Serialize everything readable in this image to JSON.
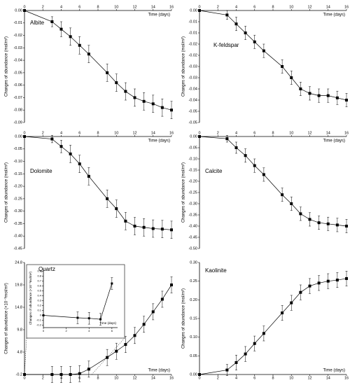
{
  "chart_data": [
    {
      "type": "line",
      "title": "Albite",
      "y_label": "Changes of abundance (mol/m²)",
      "x_label": "Time (days)",
      "x_axis_side": "top",
      "x": [
        0,
        3,
        4,
        5,
        6,
        7,
        9,
        10,
        11,
        12,
        13,
        14,
        15,
        16
      ],
      "values": [
        0,
        -0.009,
        -0.015,
        -0.021,
        -0.028,
        -0.035,
        -0.05,
        -0.058,
        -0.065,
        -0.07,
        -0.073,
        -0.075,
        -0.078,
        -0.08
      ],
      "errors": [
        0,
        0.004,
        0.006,
        0.007,
        0.007,
        0.007,
        0.007,
        0.007,
        0.007,
        0.007,
        0.007,
        0.007,
        0.007,
        0.007
      ],
      "xlim": [
        0,
        16
      ],
      "xticks": [
        0,
        2,
        4,
        6,
        8,
        10,
        12,
        14,
        16
      ],
      "ylim": [
        -0.09,
        0
      ],
      "yticks": [
        {
          "value": 0,
          "label": "0.00"
        },
        -0.01,
        -0.02,
        -0.03,
        -0.04,
        -0.05,
        -0.06,
        -0.07,
        -0.08,
        -0.09
      ]
    },
    {
      "type": "line",
      "title": "K-feldspar",
      "y_label": "Changes of abundance (mol/m²)",
      "x_label": "Time (days)",
      "x_axis_side": "top",
      "x": [
        0,
        3,
        4,
        5,
        6,
        7,
        9,
        10,
        11,
        12,
        13,
        14,
        15,
        16
      ],
      "values": [
        0,
        -0.002,
        -0.006,
        -0.01,
        -0.014,
        -0.018,
        -0.025,
        -0.03,
        -0.035,
        -0.037,
        -0.038,
        -0.038,
        -0.039,
        -0.04
      ],
      "errors": [
        0,
        0.002,
        0.003,
        0.003,
        0.003,
        0.003,
        0.003,
        0.003,
        0.003,
        0.003,
        0.003,
        0.003,
        0.003,
        0.003
      ],
      "xlim": [
        0,
        16
      ],
      "xticks": [
        0,
        2,
        4,
        6,
        8,
        10,
        12,
        14,
        16
      ],
      "ylim": [
        -0.05,
        0
      ],
      "yticks": [
        {
          "value": 0,
          "label": "0.00"
        },
        {
          "value": -0.005,
          "label": "-0.01"
        },
        -0.01,
        {
          "value": -0.015,
          "label": "-0.02"
        },
        -0.02,
        {
          "value": -0.025,
          "label": "-0.03"
        },
        -0.03,
        {
          "value": -0.035,
          "label": "-0.04"
        },
        -0.04,
        {
          "value": -0.045,
          "label": "-0.05"
        },
        -0.05
      ]
    },
    {
      "type": "line",
      "title": "Dolomite",
      "y_label": "Changes of abundance (mol/m²)",
      "x_label": "Time (days)",
      "x_axis_side": "top",
      "x": [
        0,
        3,
        4,
        5,
        6,
        7,
        9,
        10,
        11,
        12,
        13,
        14,
        15,
        16
      ],
      "values": [
        0,
        -0.01,
        -0.04,
        -0.07,
        -0.11,
        -0.16,
        -0.25,
        -0.29,
        -0.34,
        -0.36,
        -0.365,
        -0.37,
        -0.372,
        -0.375
      ],
      "errors": [
        0,
        0.015,
        0.025,
        0.035,
        0.035,
        0.035,
        0.035,
        0.035,
        0.035,
        0.035,
        0.035,
        0.035,
        0.035,
        0.035
      ],
      "xlim": [
        0,
        16
      ],
      "xticks": [
        0,
        2,
        4,
        6,
        8,
        10,
        12,
        14,
        16
      ],
      "ylim": [
        -0.45,
        0
      ],
      "yticks": [
        {
          "value": 0,
          "label": "0.00"
        },
        -0.05,
        {
          "value": -0.1,
          "label": "-0.10"
        },
        -0.15,
        {
          "value": -0.2,
          "label": "-0.20"
        },
        -0.25,
        {
          "value": -0.3,
          "label": "-0.30"
        },
        -0.35,
        {
          "value": -0.4,
          "label": "-0.40"
        },
        -0.45
      ]
    },
    {
      "type": "line",
      "title": "Calcite",
      "y_label": "Changes of abundance (mol/m²)",
      "x_label": "Time (days)",
      "x_axis_side": "top",
      "x": [
        0,
        3,
        4,
        5,
        6,
        7,
        9,
        10,
        11,
        12,
        13,
        14,
        15,
        16
      ],
      "values": [
        0,
        -0.01,
        -0.05,
        -0.085,
        -0.13,
        -0.17,
        -0.26,
        -0.3,
        -0.345,
        -0.37,
        -0.385,
        -0.39,
        -0.395,
        -0.4
      ],
      "errors": [
        0,
        0.015,
        0.025,
        0.03,
        0.03,
        0.03,
        0.03,
        0.03,
        0.03,
        0.03,
        0.03,
        0.03,
        0.03,
        0.03
      ],
      "xlim": [
        0,
        16
      ],
      "xticks": [
        0,
        2,
        4,
        6,
        8,
        10,
        12,
        14,
        16
      ],
      "ylim": [
        -0.5,
        0
      ],
      "yticks": [
        {
          "value": 0,
          "label": "0.00"
        },
        -0.05,
        {
          "value": -0.1,
          "label": "-0.10"
        },
        -0.15,
        {
          "value": -0.2,
          "label": "-0.20"
        },
        -0.25,
        {
          "value": -0.3,
          "label": "-0.30"
        },
        -0.35,
        {
          "value": -0.4,
          "label": "-0.40"
        },
        -0.45,
        {
          "value": -0.5,
          "label": "-0.50"
        }
      ]
    },
    {
      "type": "line",
      "title": "Quartz",
      "y_label": "Changes of abundance (×10⁻³mol/m²)",
      "x_label": "Time (days)",
      "x_axis_side": "bottom",
      "x": [
        0,
        3,
        4,
        5,
        6,
        7,
        9,
        10,
        11,
        12,
        13,
        14,
        15,
        16
      ],
      "values": [
        -0.2,
        -0.2,
        -0.2,
        -0.2,
        0,
        1,
        3.6,
        5,
        6.5,
        8.5,
        11,
        13.8,
        16.6,
        19.8
      ],
      "errors": [
        0,
        1.8,
        1.8,
        1.8,
        1.8,
        1.8,
        1.8,
        1.8,
        1.8,
        1.8,
        1.8,
        1.8,
        1.8,
        1.8
      ],
      "xlim": [
        0,
        16
      ],
      "xticks": [
        0,
        2,
        4,
        6,
        8,
        10,
        12,
        14,
        16
      ],
      "ylim": [
        -0.2,
        24.8
      ],
      "yticks": [
        -0.2,
        4.8,
        9.8,
        14.8,
        19.8,
        24.8
      ]
    },
    {
      "type": "line",
      "title": "Kaolinite",
      "y_label": "Changes of abundance (mol/m²)",
      "x_label": "Time (days)",
      "x_axis_side": "bottom",
      "x": [
        0,
        3,
        4,
        5,
        6,
        7,
        9,
        10,
        11,
        12,
        13,
        14,
        15,
        16
      ],
      "values": [
        0,
        0.012,
        0.032,
        0.055,
        0.083,
        0.11,
        0.165,
        0.192,
        0.22,
        0.237,
        0.245,
        0.25,
        0.253,
        0.257
      ],
      "errors": [
        0,
        0.015,
        0.02,
        0.02,
        0.02,
        0.02,
        0.02,
        0.02,
        0.02,
        0.02,
        0.02,
        0.02,
        0.02,
        0.02
      ],
      "xlim": [
        0,
        16
      ],
      "xticks": [
        0,
        2,
        4,
        6,
        8,
        10,
        12,
        14,
        16
      ],
      "ylim": [
        0,
        0.3
      ],
      "yticks": [
        {
          "value": 0,
          "label": "0.00"
        },
        0.05,
        {
          "value": 0.1,
          "label": "0.10"
        },
        0.15,
        {
          "value": 0.2,
          "label": "0.20"
        },
        0.25,
        {
          "value": 0.3,
          "label": "0.30"
        }
      ]
    },
    {
      "type": "line",
      "y_label": "Changes of abundance (×10⁻³mol/m²)",
      "x_label": "Time (days)",
      "x_axis_side": "bottom",
      "x": [
        0,
        3,
        4,
        5,
        6
      ],
      "values": [
        0,
        -0.05,
        -0.06,
        -0.08,
        0.65
      ],
      "errors": [
        0,
        0.12,
        0.12,
        0.12,
        0.12
      ],
      "xlim": [
        0,
        6.5
      ],
      "xticks": [
        0,
        2,
        4,
        6
      ],
      "ylim": [
        -0.25,
        0.95
      ],
      "yticks": [
        -0.2,
        -0.1,
        0,
        0.1,
        0.2,
        0.3,
        0.4,
        0.5,
        0.6,
        0.7,
        0.8,
        0.9
      ]
    }
  ]
}
